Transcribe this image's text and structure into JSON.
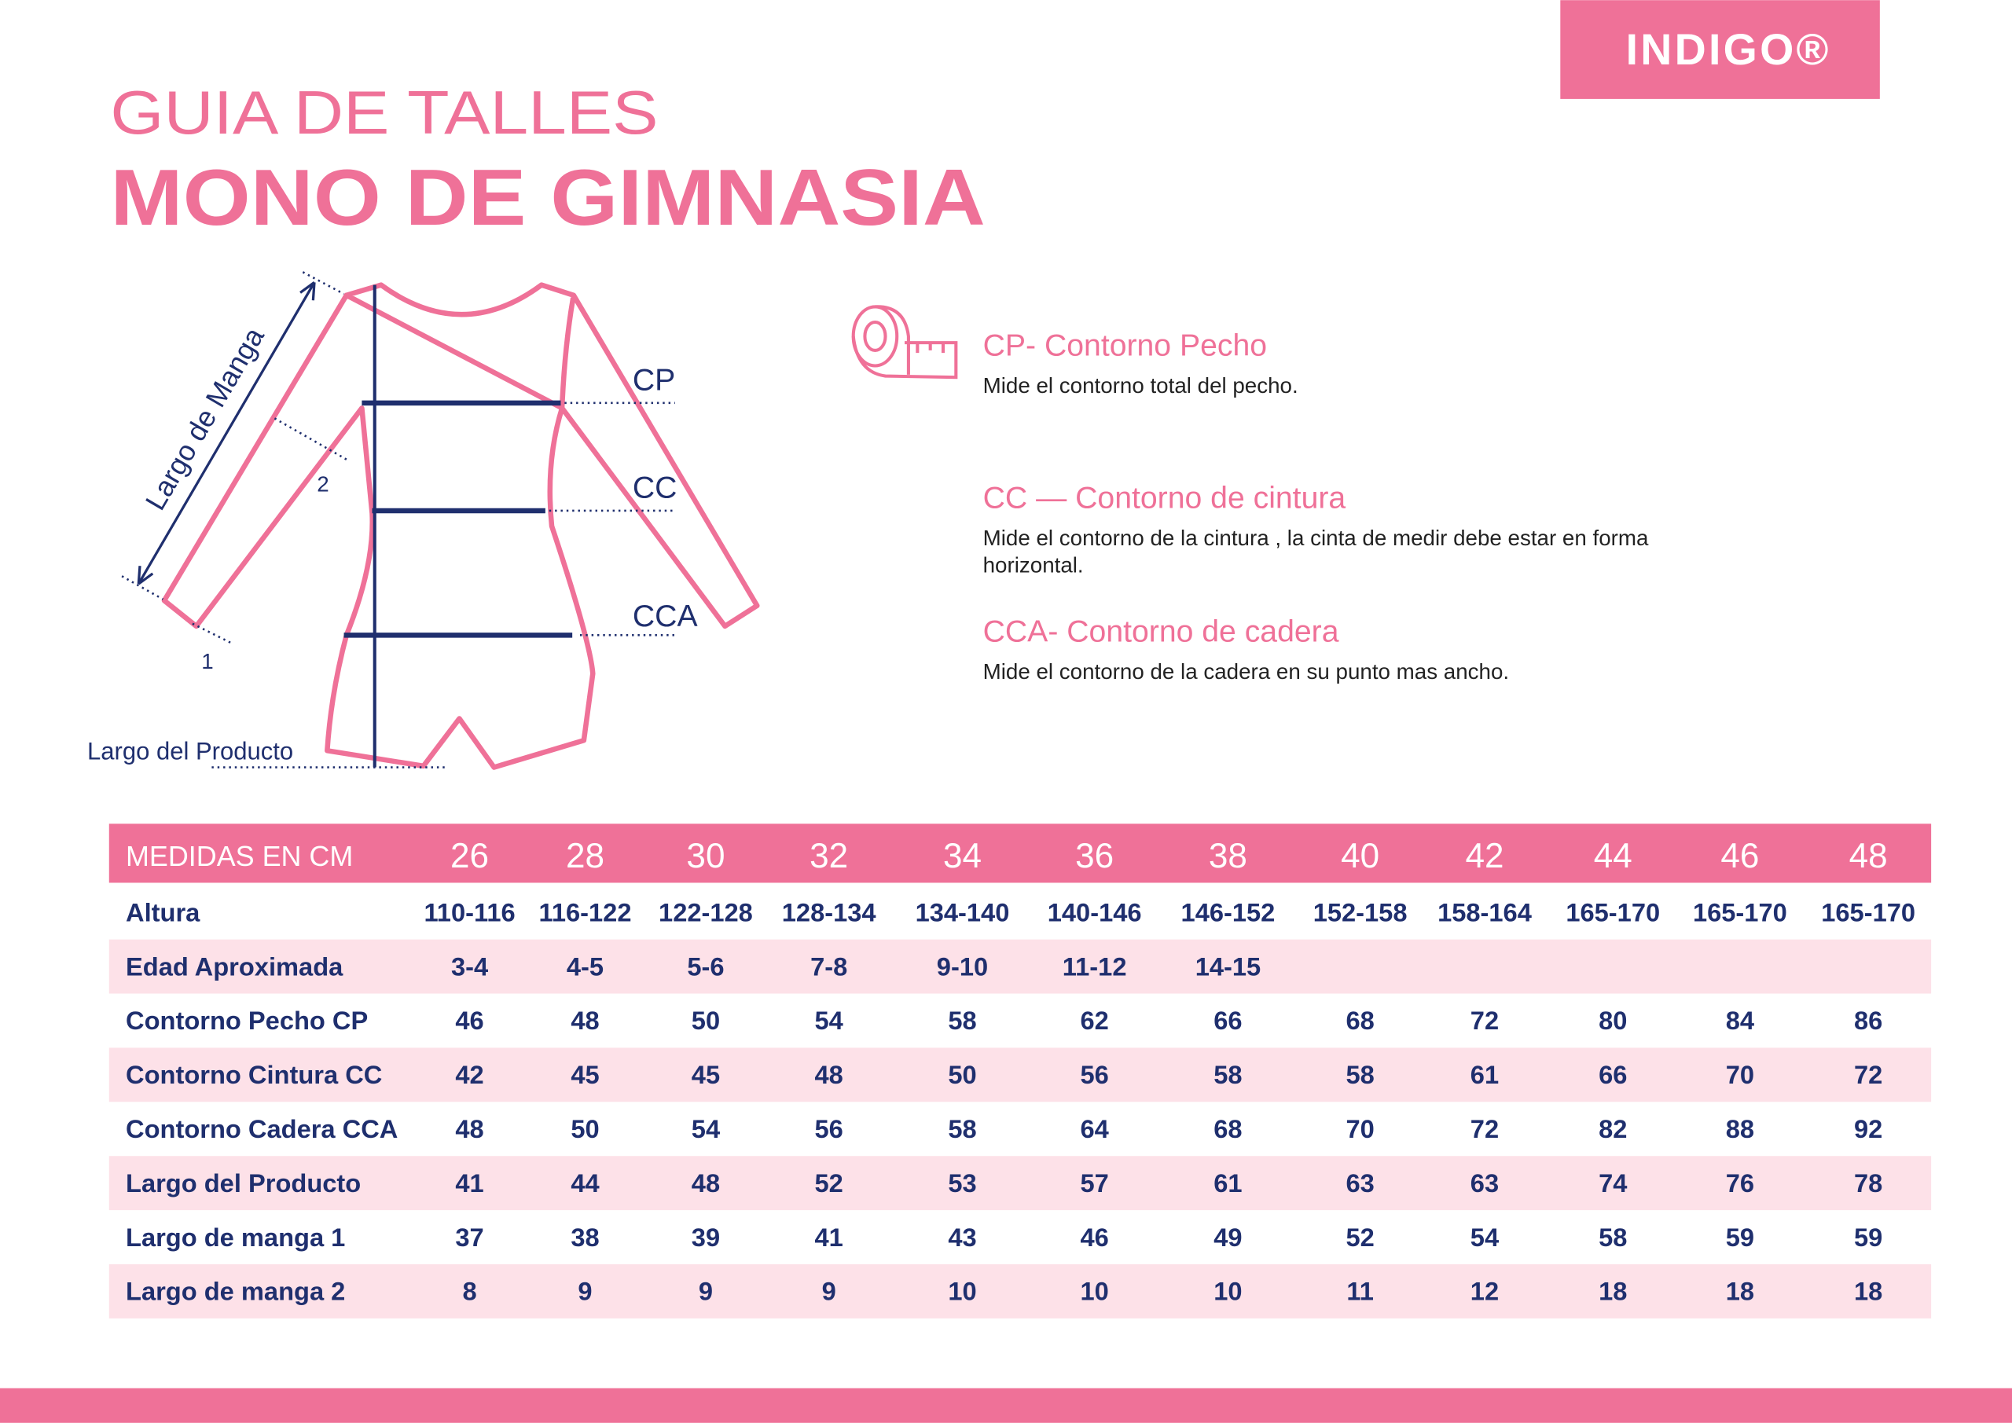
{
  "header": {
    "logo": "INDIGO®",
    "title_line1": "GUIA DE TALLES",
    "title_line2": "MONO DE GIMNASIA"
  },
  "diagram": {
    "labels": {
      "cp": "CP",
      "cc": "CC",
      "cca": "CCA",
      "sleeve_length": "Largo de Manga",
      "sleeve_point_1": "1",
      "sleeve_point_2": "2",
      "product_length": "Largo del Producto"
    }
  },
  "legend": {
    "items": [
      {
        "title": "CP- Contorno Pecho",
        "description": [
          "Mide el contorno total del pecho."
        ]
      },
      {
        "title": "CC — Contorno de cintura",
        "description": [
          "Mide el contorno de la cintura , la cinta de medir debe estar en forma",
          "horizontal."
        ]
      },
      {
        "title": "CCA- Contorno de cadera",
        "description": [
          "Mide el contorno de la cadera en su punto mas ancho."
        ]
      }
    ]
  },
  "table": {
    "header": {
      "label": "MEDIDAS EN CM",
      "sizes": [
        26,
        28,
        30,
        32,
        34,
        36,
        38,
        40,
        42,
        44,
        46,
        48
      ]
    },
    "rows": [
      {
        "label": "Altura",
        "cells": [
          "110-116",
          "116-122",
          "122-128",
          "128-134",
          "134-140",
          "140-146",
          "146-152",
          "152-158",
          "158-164",
          "165-170",
          "165-170",
          "165-170"
        ]
      },
      {
        "label": "Edad Aproximada",
        "cells": [
          "3-4",
          "4-5",
          "5-6",
          "7-8",
          "9-10",
          "11-12",
          "14-15"
        ]
      },
      {
        "label": "Contorno Pecho CP",
        "cells": [
          46,
          48,
          50,
          54,
          58,
          62,
          66,
          68,
          72,
          80,
          84,
          86
        ]
      },
      {
        "label": "Contorno Cintura CC",
        "cells": [
          42,
          45,
          45,
          48,
          50,
          56,
          58,
          58,
          61,
          66,
          70,
          72
        ]
      },
      {
        "label": "Contorno Cadera CCA",
        "cells": [
          48,
          50,
          54,
          56,
          58,
          64,
          68,
          70,
          72,
          82,
          88,
          92
        ]
      },
      {
        "label": "Largo del Producto",
        "cells": [
          41,
          44,
          48,
          52,
          53,
          57,
          61,
          63,
          63,
          74,
          76,
          78
        ]
      },
      {
        "label": "Largo de manga 1",
        "cells": [
          37,
          38,
          39,
          41,
          43,
          46,
          49,
          52,
          54,
          58,
          59,
          59
        ]
      },
      {
        "label": "Largo de manga 2",
        "cells": [
          8,
          9,
          9,
          9,
          10,
          10,
          10,
          11,
          12,
          18,
          18,
          18
        ]
      }
    ]
  }
}
